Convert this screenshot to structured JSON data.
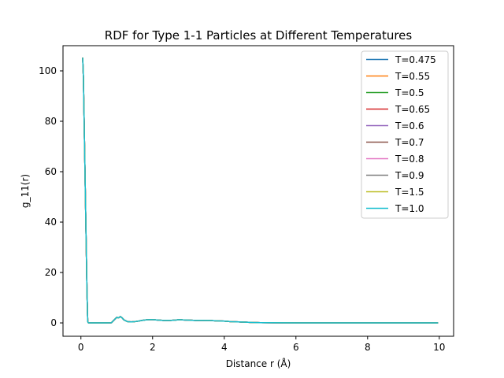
{
  "chart_data": {
    "type": "line",
    "title": "RDF for Type 1-1 Particles at Different Temperatures",
    "xlabel": "Distance r (Å)",
    "ylabel": "g_11(r)",
    "xlim": [
      -0.5,
      10.4
    ],
    "ylim": [
      -5.3,
      110.0
    ],
    "xticks": [
      0,
      2,
      4,
      6,
      8,
      10
    ],
    "yticks": [
      0,
      20,
      40,
      60,
      80,
      100
    ],
    "grid": false,
    "legend_position": "top-right",
    "x": [
      0.05,
      0.07,
      0.09,
      0.11,
      0.13,
      0.15,
      0.17,
      0.19,
      0.21,
      0.23,
      0.25,
      0.35,
      0.5,
      0.7,
      0.85,
      0.95,
      1.0,
      1.05,
      1.1,
      1.15,
      1.2,
      1.3,
      1.4,
      1.5,
      1.6,
      1.7,
      1.8,
      1.9,
      2.0,
      2.1,
      2.3,
      2.5,
      2.65,
      2.75,
      2.85,
      3.0,
      3.2,
      3.4,
      3.6,
      3.8,
      4.0,
      4.2,
      4.4,
      4.6,
      4.8,
      5.0,
      5.5,
      6.0,
      7.0,
      8.0,
      9.0,
      9.95
    ],
    "series": [
      {
        "name": "T=0.475",
        "color": "#1f77b4",
        "values": [
          105,
          97,
          80,
          63,
          46,
          29,
          12,
          0.5,
          0,
          0,
          0,
          0,
          0,
          0,
          0.05,
          1.5,
          2.2,
          2.0,
          2.5,
          2.0,
          1.2,
          0.5,
          0.4,
          0.5,
          0.7,
          1.0,
          1.2,
          1.3,
          1.3,
          1.2,
          1.0,
          1.0,
          1.15,
          1.3,
          1.2,
          1.1,
          1.0,
          1.0,
          0.95,
          0.8,
          0.7,
          0.5,
          0.4,
          0.3,
          0.15,
          0.1,
          0.05,
          0.02,
          0.0,
          0.0,
          0.0,
          0.0
        ]
      },
      {
        "name": "T=0.55",
        "color": "#ff7f0e",
        "values": [
          105,
          97,
          80,
          63,
          46,
          29,
          12,
          0.5,
          0,
          0,
          0,
          0,
          0,
          0,
          0.05,
          1.5,
          2.2,
          2.0,
          2.5,
          2.0,
          1.2,
          0.5,
          0.4,
          0.5,
          0.7,
          1.0,
          1.2,
          1.3,
          1.3,
          1.2,
          1.0,
          1.0,
          1.15,
          1.3,
          1.2,
          1.1,
          1.0,
          1.0,
          0.95,
          0.8,
          0.7,
          0.5,
          0.4,
          0.3,
          0.15,
          0.1,
          0.05,
          0.02,
          0.0,
          0.0,
          0.0,
          0.0
        ]
      },
      {
        "name": "T=0.5",
        "color": "#2ca02c",
        "values": [
          105,
          97,
          80,
          63,
          46,
          29,
          12,
          0.5,
          0,
          0,
          0,
          0,
          0,
          0,
          0.05,
          1.5,
          2.2,
          2.0,
          2.5,
          2.0,
          1.2,
          0.5,
          0.4,
          0.5,
          0.7,
          1.0,
          1.2,
          1.3,
          1.3,
          1.2,
          1.0,
          1.0,
          1.15,
          1.3,
          1.2,
          1.1,
          1.0,
          1.0,
          0.95,
          0.8,
          0.7,
          0.5,
          0.4,
          0.3,
          0.15,
          0.1,
          0.05,
          0.02,
          0.0,
          0.0,
          0.0,
          0.0
        ]
      },
      {
        "name": "T=0.65",
        "color": "#d62728",
        "values": [
          105,
          97,
          80,
          63,
          46,
          29,
          12,
          0.5,
          0,
          0,
          0,
          0,
          0,
          0,
          0.05,
          1.5,
          2.2,
          2.0,
          2.5,
          2.0,
          1.2,
          0.5,
          0.4,
          0.5,
          0.7,
          1.0,
          1.2,
          1.3,
          1.3,
          1.2,
          1.0,
          1.0,
          1.15,
          1.3,
          1.2,
          1.1,
          1.0,
          1.0,
          0.95,
          0.8,
          0.7,
          0.5,
          0.4,
          0.3,
          0.15,
          0.1,
          0.05,
          0.02,
          0.0,
          0.0,
          0.0,
          0.0
        ]
      },
      {
        "name": "T=0.6",
        "color": "#9467bd",
        "values": [
          105,
          97,
          80,
          63,
          46,
          29,
          12,
          0.5,
          0,
          0,
          0,
          0,
          0,
          0,
          0.05,
          1.5,
          2.2,
          2.0,
          2.5,
          2.0,
          1.2,
          0.5,
          0.4,
          0.5,
          0.7,
          1.0,
          1.2,
          1.3,
          1.3,
          1.2,
          1.0,
          1.0,
          1.15,
          1.3,
          1.2,
          1.1,
          1.0,
          1.0,
          0.95,
          0.8,
          0.7,
          0.5,
          0.4,
          0.3,
          0.15,
          0.1,
          0.05,
          0.02,
          0.0,
          0.0,
          0.0,
          0.0
        ]
      },
      {
        "name": "T=0.7",
        "color": "#8c564b",
        "values": [
          105,
          97,
          80,
          63,
          46,
          29,
          12,
          0.5,
          0,
          0,
          0,
          0,
          0,
          0,
          0.05,
          1.5,
          2.2,
          2.0,
          2.5,
          2.0,
          1.2,
          0.5,
          0.4,
          0.5,
          0.7,
          1.0,
          1.2,
          1.3,
          1.3,
          1.2,
          1.0,
          1.0,
          1.15,
          1.3,
          1.2,
          1.1,
          1.0,
          1.0,
          0.95,
          0.8,
          0.7,
          0.5,
          0.4,
          0.3,
          0.15,
          0.1,
          0.05,
          0.02,
          0.0,
          0.0,
          0.0,
          0.0
        ]
      },
      {
        "name": "T=0.8",
        "color": "#e377c2",
        "values": [
          105,
          97,
          80,
          63,
          46,
          29,
          12,
          0.5,
          0,
          0,
          0,
          0,
          0,
          0,
          0.05,
          1.5,
          2.2,
          2.0,
          2.5,
          2.0,
          1.2,
          0.5,
          0.4,
          0.5,
          0.7,
          1.0,
          1.2,
          1.3,
          1.3,
          1.2,
          1.0,
          1.0,
          1.15,
          1.3,
          1.2,
          1.1,
          1.0,
          1.0,
          0.95,
          0.8,
          0.7,
          0.5,
          0.4,
          0.3,
          0.15,
          0.1,
          0.05,
          0.02,
          0.0,
          0.0,
          0.0,
          0.0
        ]
      },
      {
        "name": "T=0.9",
        "color": "#7f7f7f",
        "values": [
          105,
          97,
          80,
          63,
          46,
          29,
          12,
          0.5,
          0,
          0,
          0,
          0,
          0,
          0,
          0.05,
          1.5,
          2.2,
          2.0,
          2.5,
          2.0,
          1.2,
          0.5,
          0.4,
          0.5,
          0.7,
          1.0,
          1.2,
          1.3,
          1.3,
          1.2,
          1.0,
          1.0,
          1.15,
          1.3,
          1.2,
          1.1,
          1.0,
          1.0,
          0.95,
          0.8,
          0.7,
          0.5,
          0.4,
          0.3,
          0.15,
          0.1,
          0.05,
          0.02,
          0.0,
          0.0,
          0.0,
          0.0
        ]
      },
      {
        "name": "T=1.5",
        "color": "#bcbd22",
        "values": [
          105,
          97,
          80,
          63,
          46,
          29,
          12,
          0.5,
          0,
          0,
          0,
          0,
          0,
          0,
          0.05,
          1.5,
          2.2,
          2.0,
          2.5,
          2.0,
          1.2,
          0.5,
          0.4,
          0.5,
          0.7,
          1.0,
          1.2,
          1.3,
          1.3,
          1.2,
          1.0,
          1.0,
          1.15,
          1.3,
          1.2,
          1.1,
          1.0,
          1.0,
          0.95,
          0.8,
          0.7,
          0.5,
          0.4,
          0.3,
          0.15,
          0.1,
          0.05,
          0.02,
          0.0,
          0.0,
          0.0,
          0.0
        ]
      },
      {
        "name": "T=1.0",
        "color": "#17becf",
        "values": [
          105,
          97,
          80,
          63,
          46,
          29,
          12,
          0.5,
          0,
          0,
          0,
          0,
          0,
          0,
          0.05,
          1.5,
          2.2,
          2.0,
          2.5,
          2.0,
          1.2,
          0.5,
          0.4,
          0.5,
          0.7,
          1.0,
          1.2,
          1.3,
          1.3,
          1.2,
          1.0,
          1.0,
          1.15,
          1.3,
          1.2,
          1.1,
          1.0,
          1.0,
          0.95,
          0.8,
          0.7,
          0.5,
          0.4,
          0.3,
          0.15,
          0.1,
          0.05,
          0.02,
          0.0,
          0.0,
          0.0,
          0.0
        ]
      }
    ]
  }
}
